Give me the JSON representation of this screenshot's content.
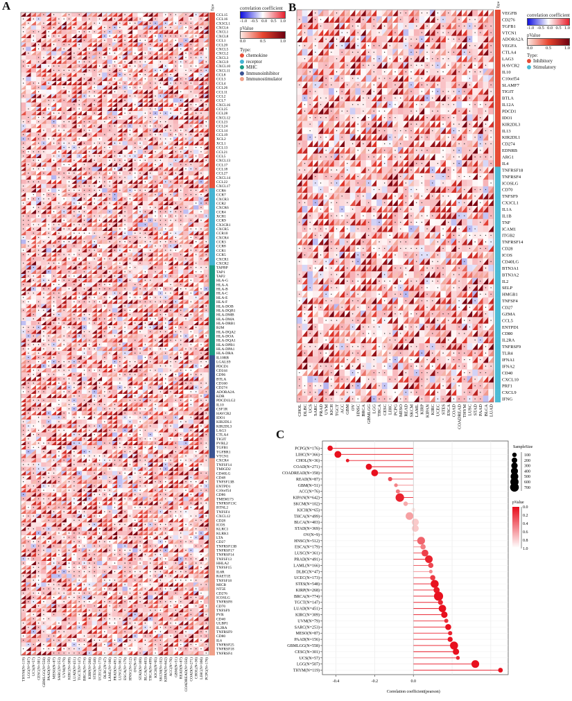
{
  "panels": {
    "a": "A",
    "b": "B",
    "c": "C"
  },
  "colors": {
    "neg": "#2b2bd6",
    "pos": "#e8212e",
    "pdark": "#7a0010",
    "plight": "#fde6e0"
  },
  "panel_a": {
    "type_header": "Type",
    "legend": {
      "corr_title": "correlation coefficient",
      "corr_ticks": [
        "-1.0",
        "-0.5",
        "0.0",
        "0.5",
        "1.0"
      ],
      "p_title": "pValue",
      "p_ticks": [
        "0.0",
        "0.5",
        "1.0"
      ],
      "type_title": "Type:",
      "types": [
        {
          "label": "chemokine",
          "color": "#e8503a"
        },
        {
          "label": "receptor",
          "color": "#45b4d3"
        },
        {
          "label": "MHC",
          "color": "#1a9c85"
        },
        {
          "label": "Immunoinhibitor",
          "color": "#3a5291"
        },
        {
          "label": "Immunostimulator",
          "color": "#f0a088"
        }
      ]
    },
    "columns": [
      "THYM(N=119)",
      "LGG(N=507)",
      "UCS(N=57)",
      "CESC(N=301)",
      "GBMLGG(N=558)",
      "PAAD(N=156)",
      "MESO(N=87)",
      "SARC(N=253)",
      "UVM(N=79)",
      "KIRC(N=309)",
      "LUAD(N=451)",
      "TGCT(N=147)",
      "BRCA(N=774)",
      "KIRP(N=268)",
      "STES(N=548)",
      "UCEC(N=173)",
      "DLBC(N=47)",
      "LAML(N=166)",
      "PRAD(N=491)",
      "LUSC(N=361)",
      "ESCA(N=179)",
      "HNSC(N=512)",
      "OV(N=9)",
      "STAD(N=369)",
      "BLCA(N=403)",
      "THCA(N=499)",
      "KICH(N=65)",
      "SKCM(N=102)",
      "KIPAN(N=642)",
      "ACC(N=76)",
      "GBM(N=51)",
      "READ(N=87)",
      "COADREAD(N=358)",
      "COAD(N=271)",
      "CHOL(N=36)",
      "LIHC(N=366)",
      "PCPG(N=176)"
    ],
    "groups": [
      {
        "type": 0,
        "genes": [
          "CCL15",
          "CCL16",
          "CX3CL1",
          "CXCL6",
          "CXCL1",
          "CXCL8",
          "CCL1",
          "CCL20",
          "CXCL5",
          "CXCL2",
          "CXCL3",
          "CXCL9",
          "CXCL10",
          "CXCL11",
          "CCL8",
          "CCL3",
          "CCL4",
          "CCL26",
          "CCL11",
          "CCL2",
          "CCL7",
          "CXCL16",
          "CCL25",
          "CCL28",
          "CXCL12",
          "CCL23",
          "CCL24",
          "CCL14",
          "CCL19",
          "XCL2",
          "XCL1",
          "CCL13",
          "CCL21",
          "CCL5",
          "CXCL13",
          "CCL17",
          "CCL18",
          "CCL27",
          "CXCL14",
          "CCL22",
          "CXCL17"
        ]
      },
      {
        "type": 1,
        "genes": [
          "CCR6",
          "CCR7",
          "CXCR3",
          "CCR2",
          "CXCR6",
          "CCR4",
          "XCR1",
          "CCR9",
          "CX3CR1",
          "CXCR5",
          "CCR10",
          "CXCR4",
          "CCR3",
          "CCR8",
          "CCR1",
          "CCR5",
          "CXCR1",
          "CXCR2"
        ]
      },
      {
        "type": 2,
        "genes": [
          "TAPBP",
          "TAP1",
          "TAP2",
          "HLA-G",
          "HLA-A",
          "HLA-B",
          "HLA-C",
          "HLA-E",
          "HLA-F",
          "HLA-DOB",
          "HLA-DQB1",
          "HLA-DMB",
          "HLA-DMA",
          "HLA-DRB1",
          "B2M",
          "HLA-DQA2",
          "HLA-DOA",
          "HLA-DQA1",
          "HLA-DPB1",
          "HLA-DPA1",
          "HLA-DRA"
        ]
      },
      {
        "type": 3,
        "genes": [
          "IL10RB",
          "LGALS9",
          "PDCD1",
          "CD244",
          "CD96",
          "BTLA",
          "CD160",
          "CD274",
          "ADORA2A",
          "KDR",
          "PDCD1LG2",
          "IL10",
          "CSF1R",
          "HAVCR2",
          "IDO1",
          "KIR2DL1",
          "KIR2DL3",
          "LAG3",
          "CTLA4",
          "TIGIT",
          "PVRL2",
          "TGFB1",
          "TGFBR1",
          "VTCN1"
        ]
      },
      {
        "type": 4,
        "genes": [
          "CXCR4",
          "TNFSF14",
          "TMIGD2",
          "CD40LG",
          "CD48",
          "TNFSF13B",
          "ENTPD1",
          "C10orf54",
          "CD86",
          "TMEM173",
          "TNFRSF13C",
          "BTNL2",
          "TNFSF4",
          "CXCL12",
          "CD28",
          "ICOS",
          "KLRC1",
          "KLRK1",
          "LTA",
          "CD27",
          "TNFRSF13B",
          "TNFRSF17",
          "TNFRSF14",
          "TNFSF13",
          "HHLA2",
          "TNFSF15",
          "IL6R",
          "RAET1E",
          "TNFSF18",
          "MICB",
          "NT5E",
          "CD276",
          "ICOSLG",
          "TNFRSF8",
          "CD70",
          "TNFSF9",
          "PVR",
          "CD40",
          "ULBP1",
          "IL2RA",
          "TNFRSF9",
          "CD80",
          "IL6",
          "TNFRSF25",
          "TNFRSF18",
          "TNFRSF4"
        ]
      }
    ]
  },
  "panel_b": {
    "type_header": "Type",
    "legend": {
      "corr_title": "correlation coefficient",
      "corr_ticks": [
        "-1.0",
        "-0.5",
        "0.0",
        "0.5",
        "1.0"
      ],
      "p_title": "pValue",
      "p_ticks": [
        "0.0",
        "0.5",
        "1.0"
      ],
      "type_title": "Type:",
      "types": [
        {
          "label": "Inhibitory",
          "color": "#e64b35"
        },
        {
          "label": "Stimulatory",
          "color": "#4dbbd5"
        }
      ]
    },
    "columns": [
      "CHOL",
      "DLBC",
      "UCS",
      "SARC",
      "PRAD",
      "UVM",
      "KICH",
      "TGCT",
      "ACC",
      "GBM",
      "OV",
      "HNSC",
      "BRCA",
      "GBMLGG",
      "LGG",
      "THCA",
      "CESC",
      "LIHC",
      "PCPG",
      "MESO",
      "READ",
      "SKCM",
      "LAML",
      "KIRP",
      "KIPAN",
      "KIRC",
      "UCEC",
      "STES",
      "ESCA",
      "COAD",
      "COADREAD",
      "THYM",
      "LUSC",
      "STAD",
      "PAAD",
      "BLCA",
      "LUAD"
    ],
    "groups": [
      {
        "type": 0,
        "genes": [
          "VEGFB",
          "CD276",
          "TGFB1",
          "VTCN1",
          "ADORA2A",
          "VEGFA",
          "CTLA4",
          "LAG3",
          "HAVCR2",
          "IL10",
          "C10orf54",
          "SLAMF7",
          "TIGIT",
          "BTLA",
          "IL12A",
          "PDCD1",
          "IDO1",
          "KIR2DL3",
          "IL13",
          "KIR2DL1",
          "CD274",
          "EDNRB",
          "ARG1",
          "IL4"
        ]
      },
      {
        "type": 1,
        "genes": [
          "TNFRSF18",
          "TNFRSF4",
          "ICOSLG",
          "CD70",
          "TNFSF9",
          "CX3CL1",
          "IL1A",
          "IL1B",
          "TNF",
          "ICAM1",
          "ITGB2",
          "TNFRSF14",
          "CD28",
          "ICOS",
          "CD40LG",
          "BTN3A1",
          "BTN3A2",
          "IL2",
          "SELP",
          "HMGB1",
          "TNFSF4",
          "CD27",
          "GZMA",
          "CCL5",
          "ENTPD1",
          "CD80",
          "IL2RA",
          "TNFRSF9",
          "TLR4",
          "IFNA1",
          "IFNA2",
          "CD40",
          "CXCL10",
          "PRF1",
          "CXCL9",
          "IFNG"
        ]
      }
    ]
  },
  "chart_data": {
    "type": "scatter",
    "subtype": "lollipop",
    "xlabel": "Correlation coefficient(pearson)",
    "xlim": [
      -0.47,
      0.49
    ],
    "xticks": [
      -0.4,
      -0.2,
      0.0
    ],
    "xtick_labels": [
      "-0.4",
      "-0.2",
      "0.0"
    ],
    "grid": true,
    "size_legend": {
      "title": "SampleSize",
      "values": [
        100,
        200,
        300,
        400,
        500,
        600,
        700
      ],
      "labels": [
        "100",
        "200",
        "300",
        "400",
        "500",
        "600",
        "700"
      ]
    },
    "color_legend": {
      "title": "pValue",
      "ticks": [
        "0.0",
        "0.2",
        "0.4",
        "0.6",
        "0.8",
        "1.0"
      ]
    },
    "legend_placement": "right",
    "points": [
      {
        "label": "PCPG(N=176)",
        "n": 176,
        "r": -0.43,
        "p": 0.0
      },
      {
        "label": "LIHC(N=366)",
        "n": 366,
        "r": -0.39,
        "p": 0.0
      },
      {
        "label": "CHOL(N=36)",
        "n": 36,
        "r": -0.34,
        "p": 0.04
      },
      {
        "label": "COAD(N=271)",
        "n": 271,
        "r": -0.23,
        "p": 0.0
      },
      {
        "label": "COADREAD(N=358)",
        "n": 358,
        "r": -0.2,
        "p": 0.0
      },
      {
        "label": "READ(N=87)",
        "n": 87,
        "r": -0.12,
        "p": 0.28
      },
      {
        "label": "GBM(N=51)",
        "n": 51,
        "r": -0.09,
        "p": 0.52
      },
      {
        "label": "ACC(N=76)",
        "n": 76,
        "r": -0.08,
        "p": 0.48
      },
      {
        "label": "KIPAN(N=642)",
        "n": 642,
        "r": -0.07,
        "p": 0.08
      },
      {
        "label": "SKCM(N=102)",
        "n": 102,
        "r": -0.04,
        "p": 0.7
      },
      {
        "label": "KICH(N=65)",
        "n": 65,
        "r": 0.0,
        "p": 0.98
      },
      {
        "label": "THCA(N=499)",
        "n": 499,
        "r": -0.02,
        "p": 0.66
      },
      {
        "label": "BLCA(N=403)",
        "n": 403,
        "r": 0.01,
        "p": 0.85
      },
      {
        "label": "STAD(N=369)",
        "n": 369,
        "r": 0.01,
        "p": 0.84
      },
      {
        "label": "OV(N=9)",
        "n": 9,
        "r": 0.0,
        "p": 1.0
      },
      {
        "label": "HNSC(N=512)",
        "n": 512,
        "r": 0.04,
        "p": 0.38
      },
      {
        "label": "ESCA(N=179)",
        "n": 179,
        "r": 0.05,
        "p": 0.5
      },
      {
        "label": "LUSC(N=361)",
        "n": 361,
        "r": 0.06,
        "p": 0.22
      },
      {
        "label": "PRAD(N=491)",
        "n": 491,
        "r": 0.08,
        "p": 0.08
      },
      {
        "label": "LAML(N=166)",
        "n": 166,
        "r": 0.09,
        "p": 0.25
      },
      {
        "label": "DLBC(N=47)",
        "n": 47,
        "r": 0.09,
        "p": 0.55
      },
      {
        "label": "UCEC(N=173)",
        "n": 173,
        "r": 0.1,
        "p": 0.19
      },
      {
        "label": "STES(N=548)",
        "n": 548,
        "r": 0.11,
        "p": 0.01
      },
      {
        "label": "KIRP(N=268)",
        "n": 268,
        "r": 0.12,
        "p": 0.05
      },
      {
        "label": "BRCA(N=774)",
        "n": 774,
        "r": 0.13,
        "p": 0.0
      },
      {
        "label": "TGCT(N=147)",
        "n": 147,
        "r": 0.14,
        "p": 0.09
      },
      {
        "label": "LUAD(N=451)",
        "n": 451,
        "r": 0.15,
        "p": 0.0
      },
      {
        "label": "KIRC(N=309)",
        "n": 309,
        "r": 0.16,
        "p": 0.0
      },
      {
        "label": "UVM(N=79)",
        "n": 79,
        "r": 0.17,
        "p": 0.14
      },
      {
        "label": "SARC(N=253)",
        "n": 253,
        "r": 0.18,
        "p": 0.0
      },
      {
        "label": "MESO(N=87)",
        "n": 87,
        "r": 0.19,
        "p": 0.08
      },
      {
        "label": "PAAD(N=156)",
        "n": 156,
        "r": 0.19,
        "p": 0.02
      },
      {
        "label": "GBMLGG(N=558)",
        "n": 558,
        "r": 0.21,
        "p": 0.0
      },
      {
        "label": "CESC(N=301)",
        "n": 301,
        "r": 0.22,
        "p": 0.0
      },
      {
        "label": "UCS(N=57)",
        "n": 57,
        "r": 0.23,
        "p": 0.09
      },
      {
        "label": "LGG(N=507)",
        "n": 507,
        "r": 0.32,
        "p": 0.0
      },
      {
        "label": "THYM(N=119)",
        "n": 119,
        "r": 0.45,
        "p": 0.0
      }
    ]
  }
}
